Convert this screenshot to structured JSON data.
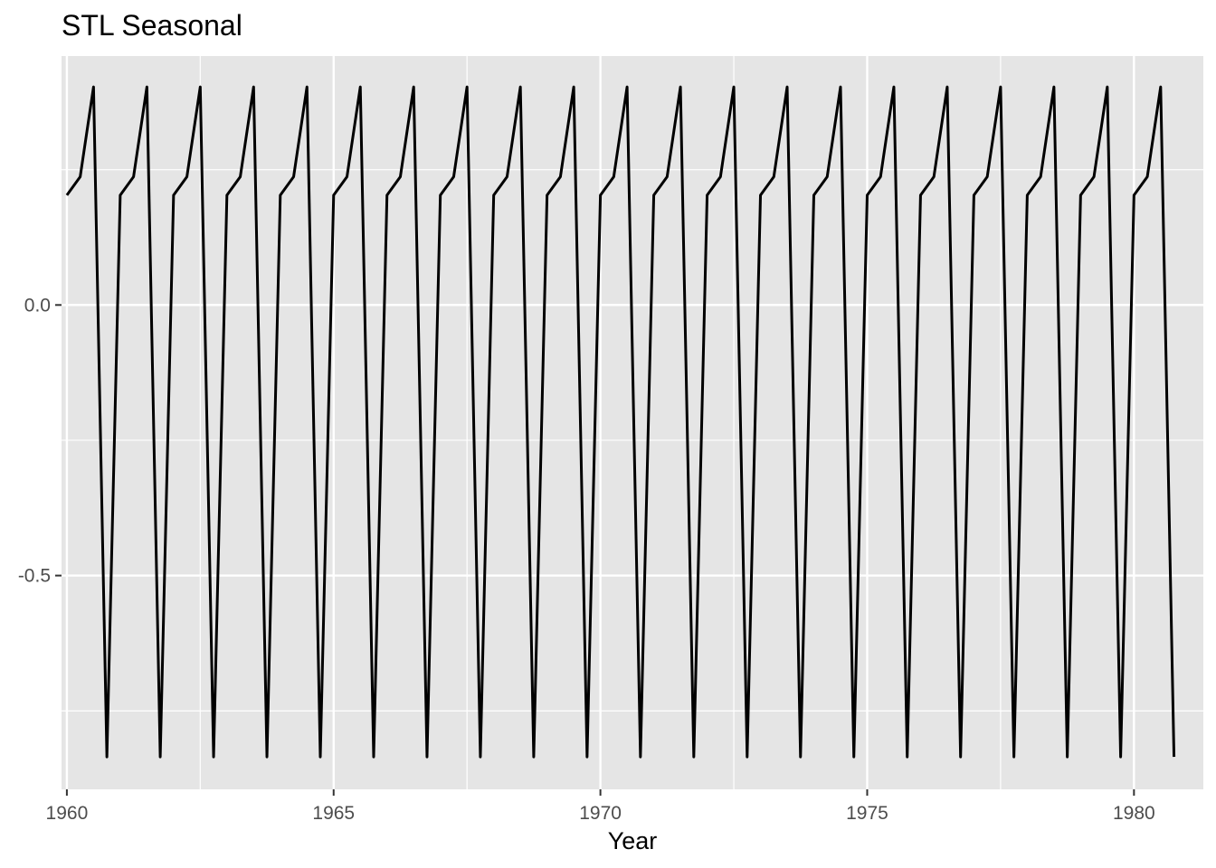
{
  "chart_data": {
    "type": "line",
    "title": "STL Seasonal",
    "xlabel": "Year",
    "ylabel": "",
    "xlim": [
      1959.9,
      1981.3
    ],
    "ylim": [
      -0.895,
      0.46
    ],
    "x_ticks": [
      1960,
      1965,
      1970,
      1975,
      1980
    ],
    "x_tick_labels": [
      "1960",
      "1965",
      "1970",
      "1975",
      "1980"
    ],
    "y_ticks": [
      0.0,
      -0.5
    ],
    "y_tick_labels": [
      "0.0",
      "-0.5"
    ],
    "grid": true,
    "background": "#e5e5e5",
    "grid_color": "#ffffff",
    "line_color": "#000000",
    "frequency": 4,
    "start": 1960.0,
    "end": 1980.75,
    "seasonal_pattern": [
      0.203,
      0.237,
      0.403,
      -0.835
    ]
  }
}
